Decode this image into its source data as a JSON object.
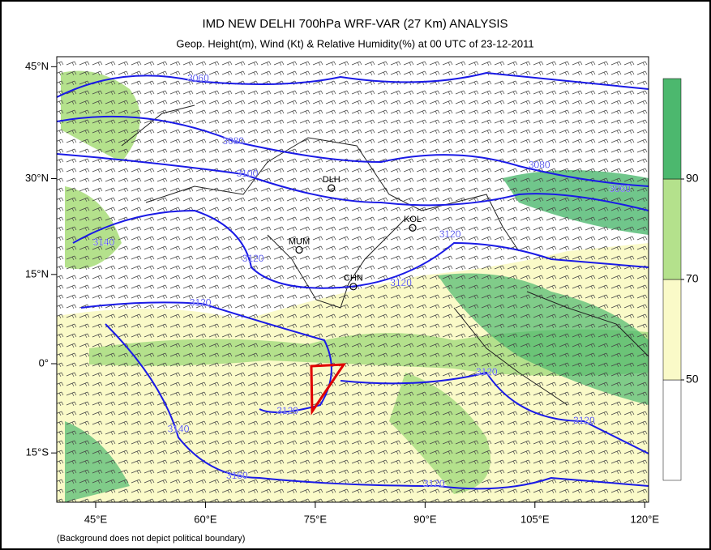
{
  "header": {
    "title": "IMD NEW DELHI 700hPa WRF-VAR (27 Km) ANALYSIS",
    "subtitle": "Geop. Height(m), Wind (Kt) & Relative Humidity(%)  at 00 UTC of 23-12-2011"
  },
  "map": {
    "lon_ticks": [
      {
        "value": 45,
        "label": "45°E"
      },
      {
        "value": 60,
        "label": "60°E"
      },
      {
        "value": 75,
        "label": "75°E"
      },
      {
        "value": 90,
        "label": "90°E"
      },
      {
        "value": 105,
        "label": "105°E"
      },
      {
        "value": 120,
        "label": "120°E"
      }
    ],
    "lat_ticks": [
      {
        "value": 45,
        "label": "45°N"
      },
      {
        "value": 30,
        "label": "30°N"
      },
      {
        "value": 15,
        "label": "15°N"
      },
      {
        "value": 0,
        "label": "0°"
      },
      {
        "value": -15,
        "label": "15°S"
      }
    ],
    "cities": [
      {
        "name": "DLH",
        "lon": 77.2,
        "lat": 28.6
      },
      {
        "name": "MUM",
        "lon": 72.8,
        "lat": 19.0
      },
      {
        "name": "KOL",
        "lon": 88.3,
        "lat": 22.5
      },
      {
        "name": "CHN",
        "lon": 80.2,
        "lat": 13.0
      }
    ],
    "contour_labels": [
      {
        "value": 3060,
        "lon": 59.0,
        "lat": 43.5
      },
      {
        "value": 3080,
        "lon": 63.8,
        "lat": 35.3
      },
      {
        "value": 3100,
        "lon": 65.7,
        "lat": 30.7
      },
      {
        "value": 3120,
        "lon": 66.5,
        "lat": 17.5
      },
      {
        "value": 3140,
        "lon": 46.1,
        "lat": 20.1
      },
      {
        "value": 3120,
        "lon": 59.3,
        "lat": 10.2
      },
      {
        "value": 3120,
        "lon": 86.7,
        "lat": 13.5
      },
      {
        "value": 3120,
        "lon": 93.4,
        "lat": 21.4
      },
      {
        "value": 3060,
        "lon": 116.6,
        "lat": 28.4
      },
      {
        "value": 3080,
        "lon": 105.6,
        "lat": 31.9
      },
      {
        "value": 3120,
        "lon": 71.2,
        "lat": -8.1
      },
      {
        "value": 3140,
        "lon": 56.3,
        "lat": -11.1
      },
      {
        "value": 3160,
        "lon": 64.3,
        "lat": -18.8
      },
      {
        "value": 3120,
        "lon": 91.2,
        "lat": -20.1
      },
      {
        "value": 3120,
        "lon": 98.4,
        "lat": -1.5
      },
      {
        "value": 3120,
        "lon": 111.7,
        "lat": -9.7
      }
    ]
  },
  "colorbar": {
    "levels": [
      50,
      70,
      90
    ],
    "colors": [
      "#ffffff",
      "#fafac8",
      "#b4e18c",
      "#4cb86e"
    ]
  },
  "footnote": "(Background does not depict political boundary)"
}
